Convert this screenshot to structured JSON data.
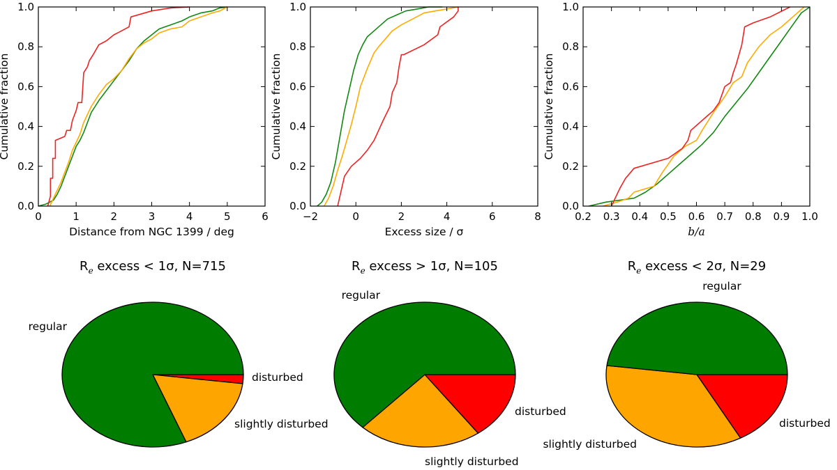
{
  "colors": {
    "disturbed": "#ee2222",
    "slightly_disturbed": "#ffaa00",
    "regular": "#118811",
    "pie_regular": "#007d00",
    "pie_slightly": "#ffa500",
    "pie_disturbed": "#ff0000"
  },
  "chart_data": [
    {
      "type": "line",
      "id": "cdf-distance",
      "xlabel": "Distance from NGC 1399 / deg",
      "ylabel": "Cumulative fraction",
      "xlim": [
        0,
        6
      ],
      "ylim": [
        0,
        1
      ],
      "xticks": [
        "0",
        "1",
        "2",
        "3",
        "4",
        "5",
        "6"
      ],
      "yticks": [
        "0.0",
        "0.2",
        "0.4",
        "0.6",
        "0.8",
        "1.0"
      ],
      "series": [
        {
          "name": "regular",
          "color_key": "regular",
          "x": [
            0.0,
            0.2,
            0.4,
            0.5,
            0.6,
            0.7,
            0.8,
            0.9,
            1.0,
            1.1,
            1.2,
            1.3,
            1.4,
            1.5,
            1.6,
            1.8,
            2.0,
            2.2,
            2.4,
            2.6,
            2.8,
            3.0,
            3.2,
            3.5,
            3.8,
            4.0,
            4.3,
            4.6,
            4.8,
            5.0
          ],
          "y": [
            0.0,
            0.01,
            0.03,
            0.06,
            0.1,
            0.15,
            0.2,
            0.25,
            0.3,
            0.33,
            0.37,
            0.42,
            0.47,
            0.5,
            0.53,
            0.58,
            0.63,
            0.68,
            0.73,
            0.79,
            0.83,
            0.86,
            0.89,
            0.91,
            0.93,
            0.95,
            0.97,
            0.98,
            0.995,
            1.0
          ]
        },
        {
          "name": "slightly disturbed",
          "color_key": "slightly_disturbed",
          "x": [
            0.3,
            0.5,
            0.6,
            0.7,
            0.8,
            0.9,
            1.0,
            1.1,
            1.2,
            1.4,
            1.6,
            1.8,
            2.0,
            2.2,
            2.4,
            2.6,
            2.8,
            3.0,
            3.2,
            3.5,
            3.8,
            4.0,
            4.3,
            4.6,
            4.8,
            5.0
          ],
          "y": [
            0.0,
            0.08,
            0.12,
            0.17,
            0.22,
            0.28,
            0.32,
            0.36,
            0.42,
            0.5,
            0.56,
            0.61,
            0.64,
            0.68,
            0.74,
            0.79,
            0.82,
            0.84,
            0.87,
            0.89,
            0.9,
            0.93,
            0.95,
            0.97,
            0.98,
            1.0
          ]
        },
        {
          "name": "disturbed",
          "color_key": "disturbed",
          "x": [
            0.25,
            0.32,
            0.32,
            0.38,
            0.38,
            0.45,
            0.45,
            0.7,
            0.75,
            0.85,
            0.9,
            1.0,
            1.05,
            1.15,
            1.2,
            1.3,
            1.35,
            1.45,
            1.6,
            1.7,
            1.8,
            2.0,
            2.1,
            2.4,
            2.45,
            3.0,
            3.5,
            4.0
          ],
          "y": [
            0.0,
            0.05,
            0.14,
            0.14,
            0.24,
            0.24,
            0.33,
            0.35,
            0.38,
            0.38,
            0.43,
            0.48,
            0.52,
            0.52,
            0.67,
            0.7,
            0.73,
            0.76,
            0.81,
            0.82,
            0.83,
            0.86,
            0.87,
            0.9,
            0.95,
            0.98,
            0.995,
            1.0
          ]
        }
      ]
    },
    {
      "type": "line",
      "id": "cdf-excess",
      "xlabel": "Excess size / σ",
      "ylabel": "Cumulative fraction",
      "xlim": [
        -2,
        8
      ],
      "ylim": [
        0,
        1
      ],
      "xticks": [
        "−2",
        "0",
        "2",
        "4",
        "6",
        "8"
      ],
      "yticks": [
        "0.0",
        "0.2",
        "0.4",
        "0.6",
        "0.8",
        "1.0"
      ],
      "series": [
        {
          "name": "regular",
          "color_key": "regular",
          "x": [
            -1.7,
            -1.5,
            -1.3,
            -1.1,
            -0.9,
            -0.7,
            -0.5,
            -0.3,
            -0.1,
            0.1,
            0.3,
            0.5,
            0.8,
            1.1,
            1.4,
            1.8,
            2.2,
            2.7,
            3.2,
            3.8
          ],
          "y": [
            0.0,
            0.02,
            0.06,
            0.12,
            0.22,
            0.35,
            0.48,
            0.58,
            0.68,
            0.76,
            0.81,
            0.85,
            0.88,
            0.91,
            0.94,
            0.96,
            0.98,
            0.99,
            1.0,
            1.0
          ]
        },
        {
          "name": "slightly disturbed",
          "color_key": "slightly_disturbed",
          "x": [
            -1.4,
            -1.2,
            -1.0,
            -0.8,
            -0.6,
            -0.4,
            -0.2,
            0.0,
            0.2,
            0.5,
            0.8,
            1.0,
            1.3,
            1.6,
            2.0,
            2.5,
            3.0,
            3.5,
            4.0,
            4.5
          ],
          "y": [
            0.0,
            0.04,
            0.1,
            0.18,
            0.25,
            0.33,
            0.41,
            0.5,
            0.6,
            0.69,
            0.77,
            0.8,
            0.84,
            0.88,
            0.91,
            0.94,
            0.97,
            0.98,
            0.99,
            1.0
          ]
        },
        {
          "name": "disturbed",
          "color_key": "disturbed",
          "x": [
            -0.8,
            -0.6,
            -0.5,
            -0.2,
            0.2,
            0.5,
            0.8,
            1.0,
            1.2,
            1.5,
            1.6,
            1.8,
            1.9,
            2.0,
            2.1,
            3.0,
            3.6,
            3.7,
            4.3,
            4.5,
            4.5
          ],
          "y": [
            0.0,
            0.1,
            0.15,
            0.2,
            0.24,
            0.28,
            0.33,
            0.38,
            0.43,
            0.5,
            0.57,
            0.62,
            0.7,
            0.76,
            0.76,
            0.81,
            0.86,
            0.9,
            0.95,
            0.98,
            1.0
          ]
        }
      ]
    },
    {
      "type": "line",
      "id": "cdf-ba",
      "xlabel": "b/a",
      "ylabel": "Cumulative fraction",
      "xlim": [
        0.2,
        1.0
      ],
      "ylim": [
        0,
        1
      ],
      "xticks": [
        "0.2",
        "0.3",
        "0.4",
        "0.5",
        "0.6",
        "0.7",
        "0.8",
        "0.9",
        "1.0"
      ],
      "yticks": [
        "0.0",
        "0.2",
        "0.4",
        "0.6",
        "0.8",
        "1.0"
      ],
      "series": [
        {
          "name": "regular",
          "color_key": "regular",
          "x": [
            0.22,
            0.28,
            0.33,
            0.38,
            0.42,
            0.46,
            0.5,
            0.54,
            0.58,
            0.62,
            0.66,
            0.7,
            0.74,
            0.78,
            0.82,
            0.86,
            0.9,
            0.94,
            0.97,
            1.0
          ],
          "y": [
            0.0,
            0.02,
            0.03,
            0.04,
            0.07,
            0.11,
            0.16,
            0.21,
            0.26,
            0.31,
            0.37,
            0.45,
            0.52,
            0.59,
            0.67,
            0.75,
            0.83,
            0.91,
            0.97,
            1.0
          ]
        },
        {
          "name": "slightly disturbed",
          "color_key": "slightly_disturbed",
          "x": [
            0.27,
            0.32,
            0.36,
            0.38,
            0.45,
            0.48,
            0.52,
            0.56,
            0.6,
            0.62,
            0.66,
            0.7,
            0.73,
            0.76,
            0.78,
            0.82,
            0.86,
            0.9,
            0.94,
            0.98
          ],
          "y": [
            0.0,
            0.02,
            0.04,
            0.07,
            0.1,
            0.17,
            0.25,
            0.3,
            0.33,
            0.38,
            0.47,
            0.55,
            0.62,
            0.65,
            0.72,
            0.8,
            0.86,
            0.9,
            0.95,
            1.0
          ]
        },
        {
          "name": "disturbed",
          "color_key": "disturbed",
          "x": [
            0.3,
            0.33,
            0.35,
            0.38,
            0.5,
            0.55,
            0.57,
            0.58,
            0.62,
            0.66,
            0.68,
            0.7,
            0.72,
            0.73,
            0.74,
            0.76,
            0.77,
            0.8,
            0.86,
            0.93
          ],
          "y": [
            0.0,
            0.09,
            0.14,
            0.19,
            0.24,
            0.29,
            0.33,
            0.38,
            0.43,
            0.48,
            0.52,
            0.6,
            0.62,
            0.67,
            0.71,
            0.81,
            0.9,
            0.92,
            0.95,
            1.0
          ]
        }
      ]
    },
    {
      "type": "pie",
      "id": "pie-1",
      "title_main": "R",
      "title_sub": "e",
      "title_rest": "  excess < 1σ, N=715",
      "slices": [
        {
          "label": "disturbed",
          "value": 2,
          "color_key": "pie_disturbed"
        },
        {
          "label": "slightly disturbed",
          "value": 17,
          "color_key": "pie_slightly"
        },
        {
          "label": "regular",
          "value": 81,
          "color_key": "pie_regular"
        }
      ]
    },
    {
      "type": "pie",
      "id": "pie-2",
      "title_main": "R",
      "title_sub": "e",
      "title_rest": "  excess > 1σ, N=105",
      "slices": [
        {
          "label": "disturbed",
          "value": 15,
          "color_key": "pie_disturbed"
        },
        {
          "label": "slightly disturbed",
          "value": 22,
          "color_key": "pie_slightly"
        },
        {
          "label": "regular",
          "value": 63,
          "color_key": "pie_regular"
        }
      ]
    },
    {
      "type": "pie",
      "id": "pie-3",
      "title_main": "R",
      "title_sub": "e",
      "title_rest": "  excess < 2σ, N=29",
      "slices": [
        {
          "label": "disturbed",
          "value": 17,
          "color_key": "pie_disturbed"
        },
        {
          "label": "slightly disturbed",
          "value": 35,
          "color_key": "pie_slightly"
        },
        {
          "label": "regular",
          "value": 48,
          "color_key": "pie_regular"
        }
      ]
    }
  ]
}
